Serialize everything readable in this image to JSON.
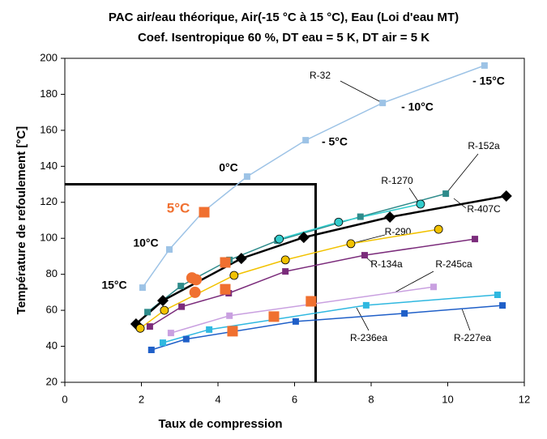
{
  "chart_data": {
    "type": "line",
    "title": "PAC air/eau théorique, Air(-15 °C à 15 °C), Eau (Loi d'eau MT)",
    "subtitle": "Coef. Isentropique 60 %, DT eau = 5 K, DT air = 5 K",
    "x_label": "Taux de compression",
    "y_label": "Température de refoulement [°C]",
    "xlim": [
      0,
      12
    ],
    "xticks": [
      0,
      2,
      4,
      6,
      8,
      10,
      12
    ],
    "ylim": [
      20,
      200
    ],
    "yticks": [
      20,
      40,
      60,
      80,
      100,
      120,
      140,
      160,
      180,
      200
    ],
    "grid": false,
    "limit_x": 6.55,
    "limit_y": 130,
    "annotations": [
      "- 15°C",
      "- 10°C",
      "- 5°C",
      "0°C",
      "5°C",
      "10°C",
      "15°C"
    ],
    "series": [
      {
        "name": "R-32",
        "color": "#9dc3e6",
        "marker": "square",
        "line": true,
        "x": [
          2.03,
          2.73,
          3.6,
          4.76,
          6.29,
          8.3,
          10.96
        ],
        "values": [
          72.6,
          93.8,
          114.5,
          134.3,
          154.5,
          175.2,
          196
        ]
      },
      {
        "name": "R-152a",
        "color": "#2e8b8b",
        "marker": "square",
        "line": true,
        "x": [
          2.16,
          3.03,
          4.3,
          5.55,
          7.72,
          9.95
        ],
        "values": [
          59,
          73.5,
          88,
          98.7,
          112,
          124.8
        ]
      },
      {
        "name": "R-1270",
        "color": "#33cccc",
        "marker": "circle",
        "line": true,
        "x": [
          5.6,
          7.15,
          9.29
        ],
        "values": [
          99.6,
          109,
          119
        ]
      },
      {
        "name": "R-407C",
        "color": "#000000",
        "marker": "diamond",
        "line": true,
        "x": [
          1.86,
          2.56,
          4.61,
          6.24,
          8.49,
          11.53
        ],
        "values": [
          52.4,
          65.4,
          88.8,
          100.5,
          111.8,
          123.5
        ]
      },
      {
        "name": "R-290",
        "color": "#f2c200",
        "marker": "circle",
        "line": true,
        "x": [
          1.97,
          2.6,
          4.42,
          5.76,
          7.47,
          9.76
        ],
        "values": [
          50,
          60,
          79.4,
          88,
          97,
          105
        ]
      },
      {
        "name": "R-134a",
        "color": "#7b2c7b",
        "marker": "square",
        "line": true,
        "x": [
          2.22,
          3.05,
          4.28,
          5.76,
          7.83,
          10.71
        ],
        "values": [
          51,
          62,
          69.5,
          81.6,
          90.6,
          99.6
        ]
      },
      {
        "name": "R-245ca",
        "color": "#c9a0e0",
        "marker": "square",
        "line": true,
        "x": [
          2.77,
          4.3,
          9.63
        ],
        "values": [
          47.4,
          57,
          73
        ]
      },
      {
        "name": "R-236ea",
        "color": "#2fb8e0",
        "marker": "square",
        "line": true,
        "x": [
          2.56,
          3.77,
          7.87,
          11.3
        ],
        "values": [
          42,
          49.3,
          62.8,
          68.6
        ]
      },
      {
        "name": "R-227ea",
        "color": "#1f5fc8",
        "marker": "square",
        "line": true,
        "x": [
          2.26,
          3.17,
          6.03,
          8.87,
          11.43
        ],
        "values": [
          38,
          44,
          53.8,
          58.3,
          62.7
        ]
      },
      {
        "color": "#f07030",
        "marker": "square",
        "line": false,
        "x": [
          3.64,
          4.19,
          4.19,
          5.46,
          4.38,
          6.43
        ],
        "values": [
          114.5,
          86.6,
          71.7,
          56.5,
          48.4,
          65
        ]
      },
      {
        "color": "#f07030",
        "marker": "circle",
        "line": false,
        "x": [
          3.32,
          3.43,
          3.4
        ],
        "values": [
          78,
          77,
          70
        ]
      }
    ]
  }
}
